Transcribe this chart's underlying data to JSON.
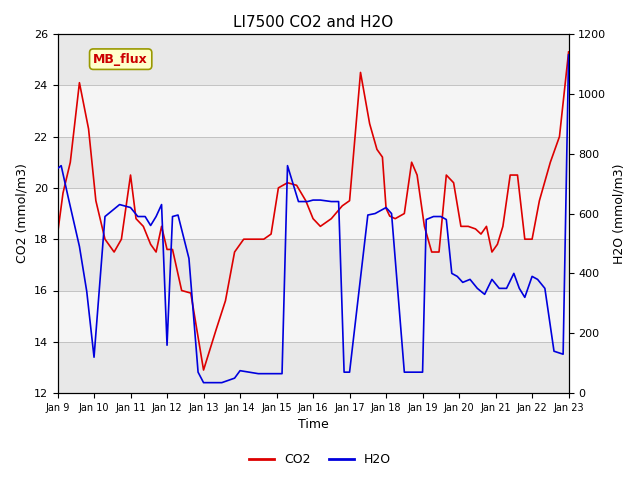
{
  "title": "LI7500 CO2 and H2O",
  "xlabel": "Time",
  "ylabel_left": "CO2 (mmol/m3)",
  "ylabel_right": "H2O (mmol/m3)",
  "xlim_labels": [
    "Jan 9",
    "Jan 10",
    "Jan 11",
    "Jan 12",
    "Jan 13",
    "Jan 14",
    "Jan 15",
    "Jan 16",
    "Jan 17",
    "Jan 18",
    "Jan 19",
    "Jan 20",
    "Jan 21",
    "Jan 22",
    "Jan 23"
  ],
  "ylim_left": [
    12,
    26
  ],
  "ylim_right": [
    0,
    1200
  ],
  "yticks_left": [
    12,
    14,
    16,
    18,
    20,
    22,
    24,
    26
  ],
  "yticks_right": [
    0,
    200,
    400,
    600,
    800,
    1000,
    1200
  ],
  "annotation_text": "MB_flux",
  "bg_color": "#ffffff",
  "plot_bg_color": "#ffffff",
  "band_colors": [
    "#e8e8e8",
    "#f5f5f5"
  ],
  "co2_color": "#dd0000",
  "h2o_color": "#0000dd",
  "co2_x": [
    9.0,
    9.15,
    9.35,
    9.6,
    9.85,
    10.05,
    10.3,
    10.55,
    10.75,
    11.0,
    11.15,
    11.35,
    11.55,
    11.7,
    11.85,
    12.0,
    12.15,
    12.4,
    12.65,
    13.0,
    13.35,
    13.6,
    13.85,
    14.1,
    14.4,
    14.65,
    14.85,
    15.05,
    15.3,
    15.55,
    15.8,
    16.0,
    16.2,
    16.5,
    16.8,
    17.0,
    17.3,
    17.55,
    17.75,
    17.9,
    18.0,
    18.1,
    18.25,
    18.5,
    18.7,
    18.85,
    19.05,
    19.25,
    19.45,
    19.65,
    19.85,
    20.05,
    20.25,
    20.45,
    20.6,
    20.75,
    20.9,
    21.05,
    21.2,
    21.4,
    21.6,
    21.8,
    22.0,
    22.2,
    22.5,
    22.75,
    23.0
  ],
  "co2_y": [
    18.2,
    19.8,
    21.0,
    24.1,
    22.3,
    19.5,
    18.0,
    17.5,
    18.0,
    20.5,
    18.8,
    18.5,
    17.8,
    17.5,
    18.5,
    17.6,
    17.6,
    16.0,
    15.9,
    12.9,
    14.5,
    15.6,
    17.5,
    18.0,
    18.0,
    18.0,
    18.2,
    20.0,
    20.2,
    20.1,
    19.5,
    18.8,
    18.5,
    18.8,
    19.3,
    19.5,
    24.5,
    22.5,
    21.5,
    21.2,
    19.2,
    18.9,
    18.8,
    19.0,
    21.0,
    20.5,
    18.5,
    17.5,
    17.5,
    20.5,
    20.2,
    18.5,
    18.5,
    18.4,
    18.2,
    18.5,
    17.5,
    17.8,
    18.5,
    20.5,
    20.5,
    18.0,
    18.0,
    19.5,
    21.0,
    22.0,
    25.3
  ],
  "h2o_x": [
    9.0,
    9.1,
    9.3,
    9.6,
    9.8,
    10.0,
    10.3,
    10.7,
    11.0,
    11.2,
    11.4,
    11.55,
    11.7,
    11.85,
    12.0,
    12.15,
    12.3,
    12.6,
    12.85,
    13.0,
    13.5,
    13.85,
    14.0,
    14.5,
    15.0,
    15.15,
    15.3,
    15.6,
    15.85,
    16.0,
    16.2,
    16.5,
    16.7,
    16.85,
    17.0,
    17.5,
    17.7,
    18.0,
    18.15,
    18.5,
    18.75,
    19.0,
    19.1,
    19.3,
    19.5,
    19.65,
    19.8,
    19.95,
    20.1,
    20.3,
    20.5,
    20.7,
    20.9,
    21.1,
    21.3,
    21.5,
    21.65,
    21.8,
    22.0,
    22.15,
    22.35,
    22.6,
    22.85,
    23.0
  ],
  "h2o_y": [
    750,
    760,
    650,
    490,
    340,
    120,
    590,
    630,
    620,
    590,
    590,
    560,
    590,
    630,
    160,
    590,
    595,
    450,
    70,
    35,
    35,
    50,
    75,
    65,
    65,
    65,
    760,
    640,
    640,
    645,
    645,
    640,
    640,
    70,
    70,
    595,
    600,
    620,
    600,
    70,
    70,
    70,
    580,
    590,
    590,
    580,
    400,
    390,
    370,
    380,
    350,
    330,
    380,
    350,
    350,
    400,
    350,
    320,
    390,
    380,
    350,
    140,
    130,
    1130
  ]
}
